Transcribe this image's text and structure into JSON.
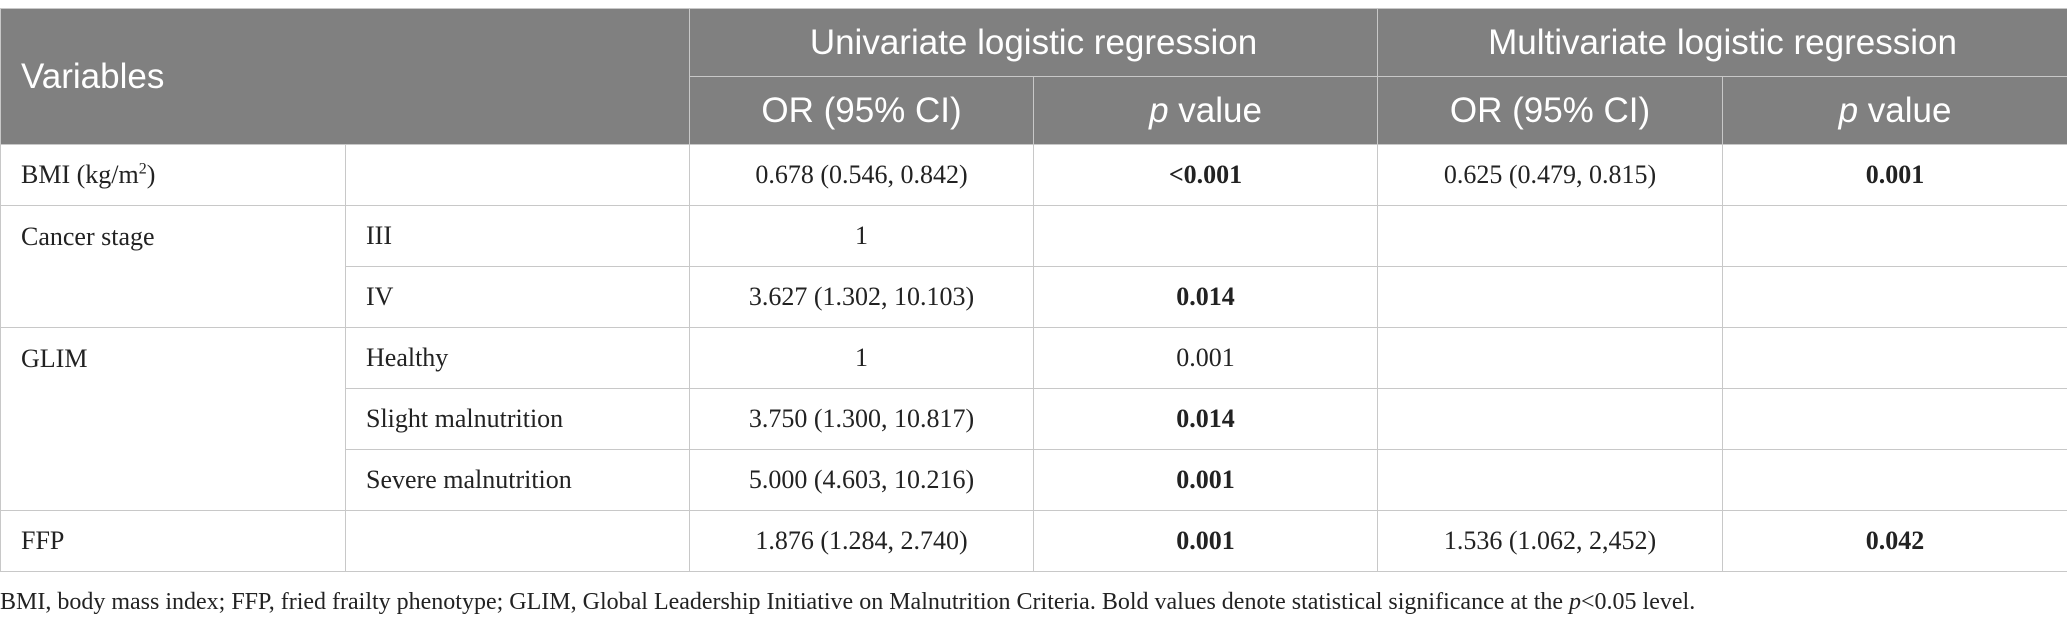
{
  "header": {
    "variables": "Variables",
    "univariate": "Univariate logistic regression",
    "multivariate": "Multivariate logistic regression",
    "or_ci": "OR (95% CI)",
    "p": "p",
    "value": " value"
  },
  "rows": [
    {
      "var_pre": "BMI (kg/m",
      "var_sup": "2",
      "var_post": ")",
      "sub": "",
      "uni_or": "0.678 (0.546, 0.842)",
      "uni_p": "<0.001",
      "multi_or": "0.625 (0.479, 0.815)",
      "multi_p": "0.001"
    },
    {
      "var": "Cancer stage",
      "sub": "III",
      "uni_or": "1",
      "uni_p": "",
      "multi_or": "",
      "multi_p": ""
    },
    {
      "sub": "IV",
      "uni_or": "3.627 (1.302, 10.103)",
      "uni_p": "0.014",
      "multi_or": "",
      "multi_p": ""
    },
    {
      "var": "GLIM",
      "sub": "Healthy",
      "uni_or": "1",
      "uni_p": "0.001",
      "multi_or": "",
      "multi_p": ""
    },
    {
      "sub": "Slight malnutrition",
      "uni_or": "3.750 (1.300, 10.817)",
      "uni_p": "0.014",
      "multi_or": "",
      "multi_p": ""
    },
    {
      "sub": "Severe malnutrition",
      "uni_or": "5.000 (4.603, 10.216)",
      "uni_p": "0.001",
      "multi_or": "",
      "multi_p": ""
    },
    {
      "var": "FFP",
      "sub": "",
      "uni_or": "1.876 (1.284, 2.740)",
      "uni_p": "0.001",
      "multi_or": "1.536 (1.062, 2,452)",
      "multi_p": "0.042"
    }
  ],
  "footnote": {
    "text": "BMI, body mass index; FFP, fried frailty phenotype; GLIM, Global Leadership Initiative on Malnutrition Criteria. Bold values denote statistical significance at the ",
    "p": "p",
    "tail": "<0.05 level."
  }
}
